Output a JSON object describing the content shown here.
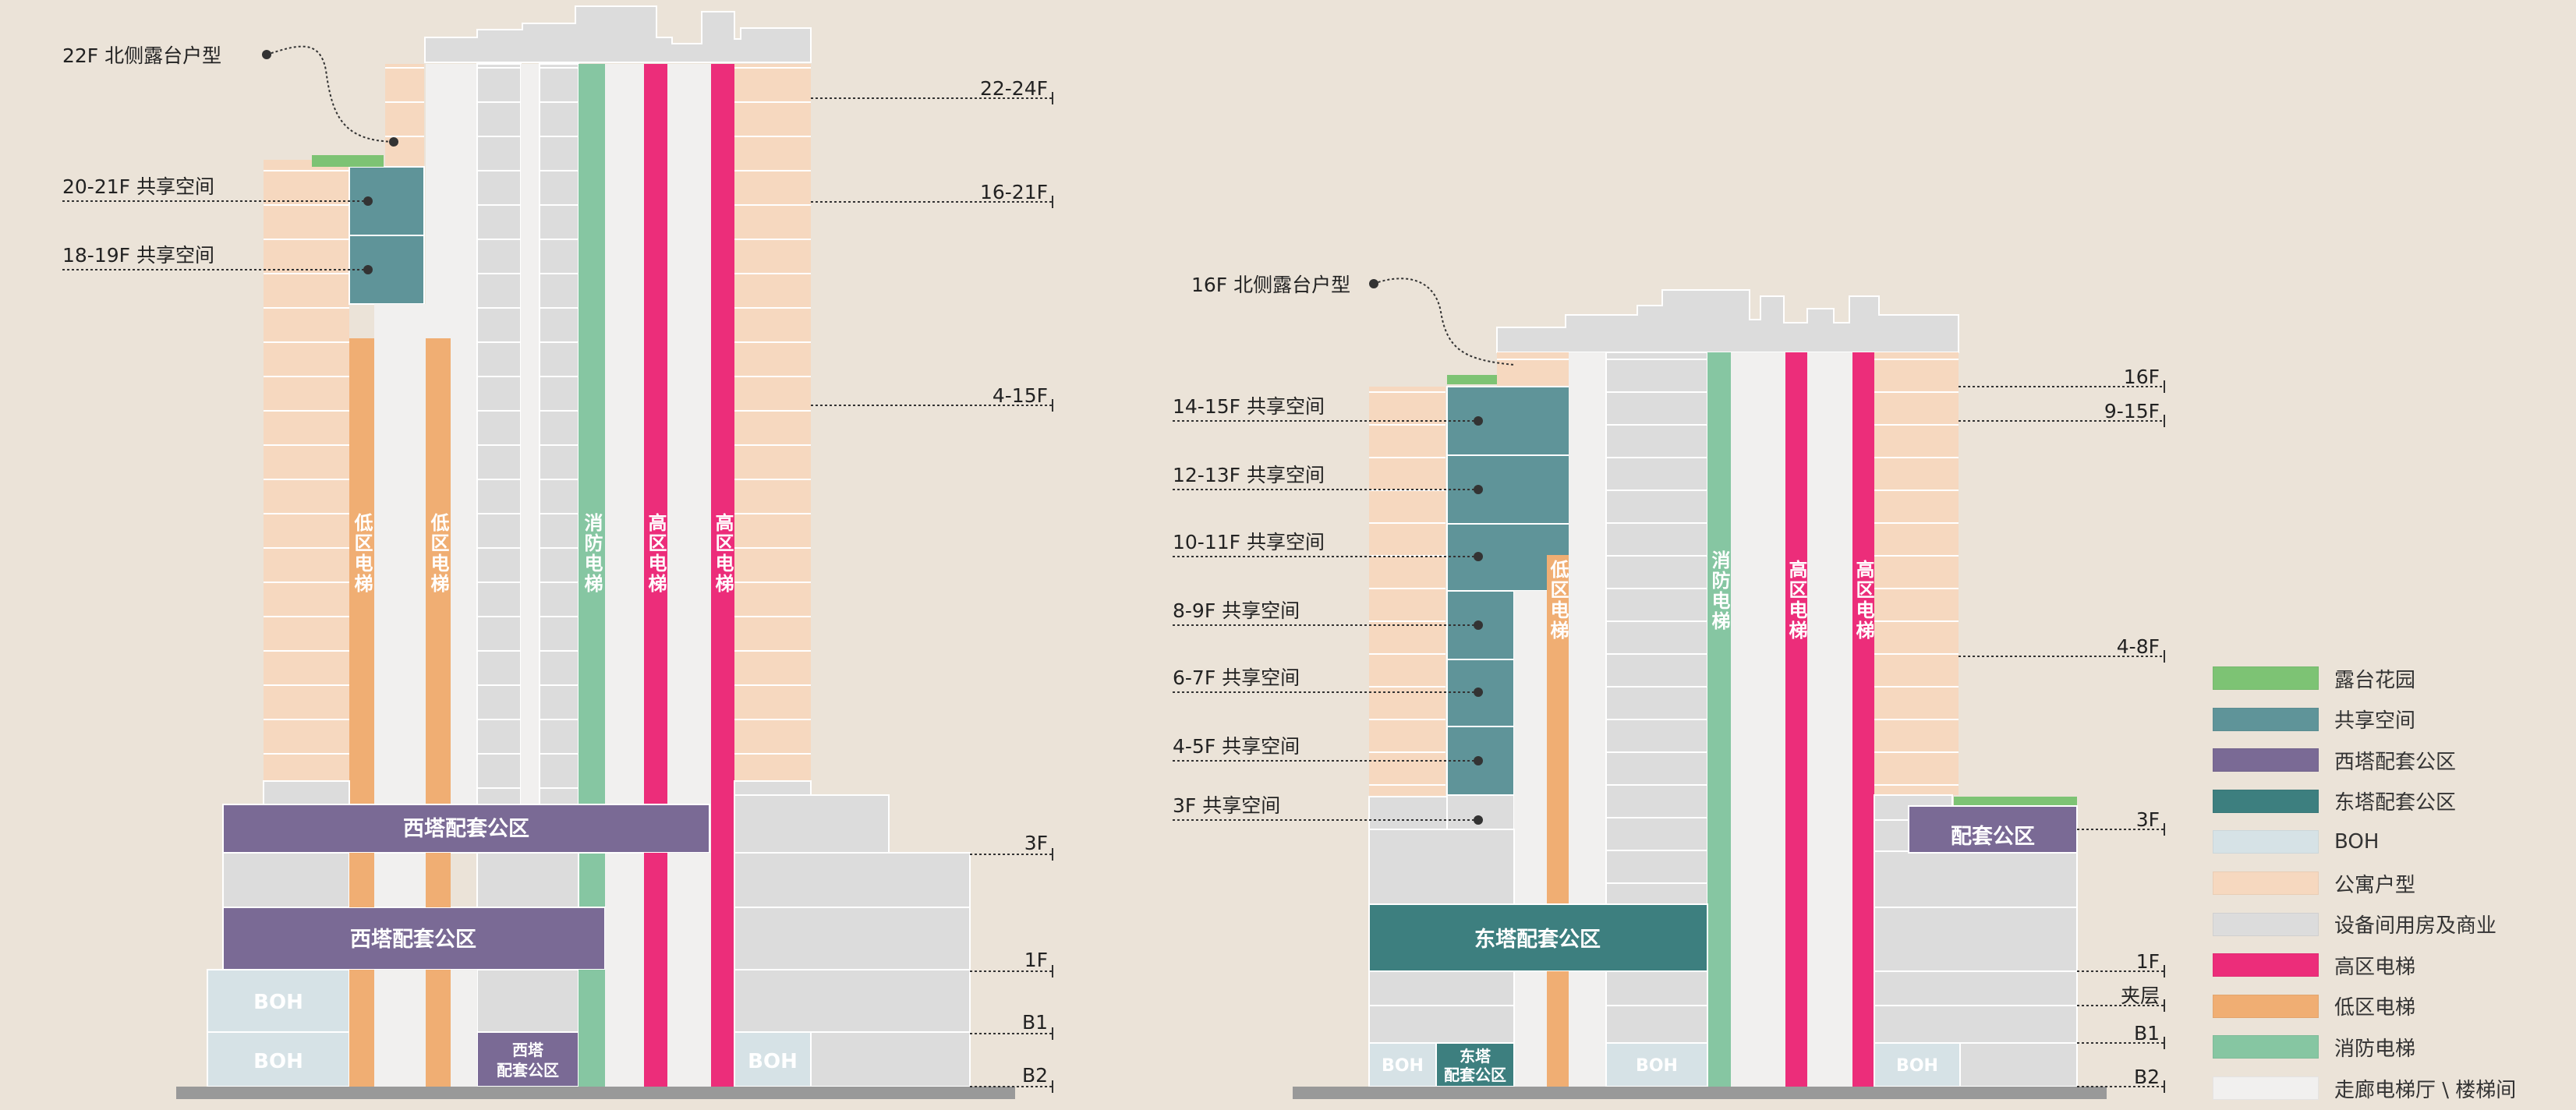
{
  "colors": {
    "background": "#EBE3D8",
    "terrace_garden": "#7DC374",
    "shared_space": "#5F9499",
    "west_tower_amenity": "#7A6A95",
    "east_tower_amenity": "#3D7F7F",
    "boh": "#D6E2E6",
    "apartment": "#F6D8BF",
    "equipment_commercial": "#DCDCDC",
    "high_zone_elevator": "#EC2D7A",
    "low_zone_elevator": "#F0AE73",
    "fire_elevator": "#86C6A2",
    "corridor": "#F1F0EF",
    "ground": "#999999"
  },
  "west_tower": {
    "top_callout": "22F 北侧露台户型",
    "left_labels": [
      "20-21F 共享空间",
      "18-19F 共享空间"
    ],
    "floor_labels": [
      "22-24F",
      "16-21F",
      "4-15F",
      "3F",
      "1F",
      "B1",
      "B2"
    ],
    "elevators": {
      "low1": "低区电梯",
      "low2": "低区电梯",
      "fire": "消防电梯",
      "high1": "高区电梯",
      "high2": "高区电梯"
    },
    "amenity_upper": "西塔配套公区",
    "amenity_lower": "西塔配套公区",
    "amenity_small_line1": "西塔",
    "amenity_small_line2": "配套公区",
    "boh_1": "BOH",
    "boh_2": "BOH",
    "boh_3": "BOH"
  },
  "east_tower": {
    "top_callout": "16F 北侧露台户型",
    "left_labels": [
      "14-15F 共享空间",
      "12-13F 共享空间",
      "10-11F 共享空间",
      "8-9F 共享空间",
      "6-7F 共享空间",
      "4-5F 共享空间",
      "3F 共享空间"
    ],
    "floor_labels": [
      "16F",
      "9-15F",
      "4-8F",
      "3F",
      "1F",
      "夹层",
      "B1",
      "B2"
    ],
    "elevators": {
      "low": "低区电梯",
      "fire": "消防电梯",
      "high1": "高区电梯",
      "high2": "高区电梯"
    },
    "amenity_main": "东塔配套公区",
    "amenity_3f": "配套公区",
    "amenity_small_line1": "东塔",
    "amenity_small_line2": "配套公区",
    "boh_1": "BOH",
    "boh_2": "BOH",
    "boh_3": "BOH"
  },
  "legend": [
    {
      "label": "露台花园",
      "color": "#7DC374"
    },
    {
      "label": "共享空间",
      "color": "#5F9499"
    },
    {
      "label": "西塔配套公区",
      "color": "#7A6A95"
    },
    {
      "label": "东塔配套公区",
      "color": "#3D7F7F"
    },
    {
      "label": "BOH",
      "color": "#D6E2E6"
    },
    {
      "label": "公寓户型",
      "color": "#F6D8BF"
    },
    {
      "label": "设备间用房及商业",
      "color": "#DCDCDC"
    },
    {
      "label": "高区电梯",
      "color": "#EC2D7A"
    },
    {
      "label": "低区电梯",
      "color": "#F0AE73"
    },
    {
      "label": "消防电梯",
      "color": "#86C6A2"
    },
    {
      "label": "走廊电梯厅 \\ 楼梯间",
      "color": "#F1F0EF"
    }
  ]
}
